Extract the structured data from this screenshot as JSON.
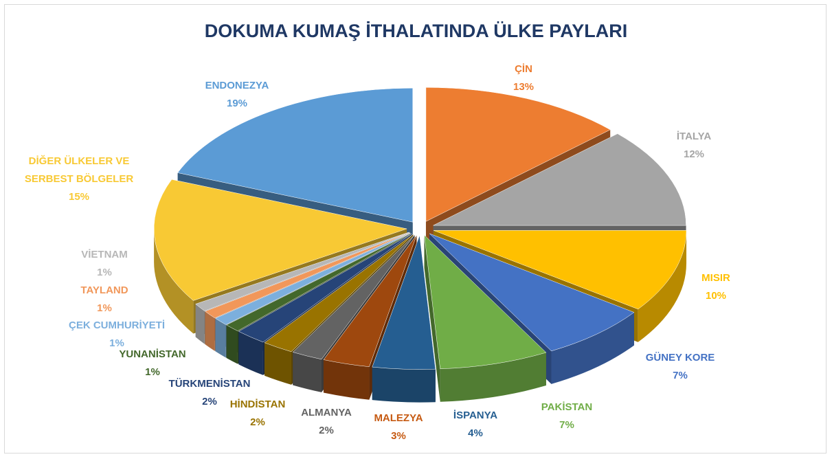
{
  "chart_data": {
    "type": "pie3d",
    "title": "DOKUMA KUMAŞ İTHALATINDA ÜLKE PAYLARI",
    "categories": [
      "ÇİN",
      "İTALYA",
      "MISIR",
      "GÜNEY KORE",
      "PAKİSTAN",
      "İSPANYA",
      "MALEZYA",
      "ALMANYA",
      "HİNDİSTAN",
      "TÜRKMENİSTAN",
      "YUNANİSTAN",
      "ÇEK CUMHURİYETİ",
      "TAYLAND",
      "VİETNAM",
      "DİĞER ÜLKELER VE SERBEST BÖLGELER",
      "ENDONEZYA"
    ],
    "values": [
      13,
      12,
      10,
      7,
      7,
      4,
      3,
      2,
      2,
      2,
      1,
      1,
      1,
      1,
      15,
      19
    ],
    "value_labels": [
      "13%",
      "12%",
      "10%",
      "7%",
      "7%",
      "4%",
      "3%",
      "2%",
      "2%",
      "2%",
      "1%",
      "1%",
      "1%",
      "1%",
      "15%",
      "19%"
    ],
    "colors": [
      "#ed7d31",
      "#a5a5a5",
      "#ffc000",
      "#4472c4",
      "#70ad47",
      "#255e91",
      "#9e480e",
      "#636363",
      "#997300",
      "#264478",
      "#43682b",
      "#7cafdd",
      "#f1975a",
      "#b7b7b7",
      "#f8c934",
      "#5b9bd5"
    ]
  }
}
